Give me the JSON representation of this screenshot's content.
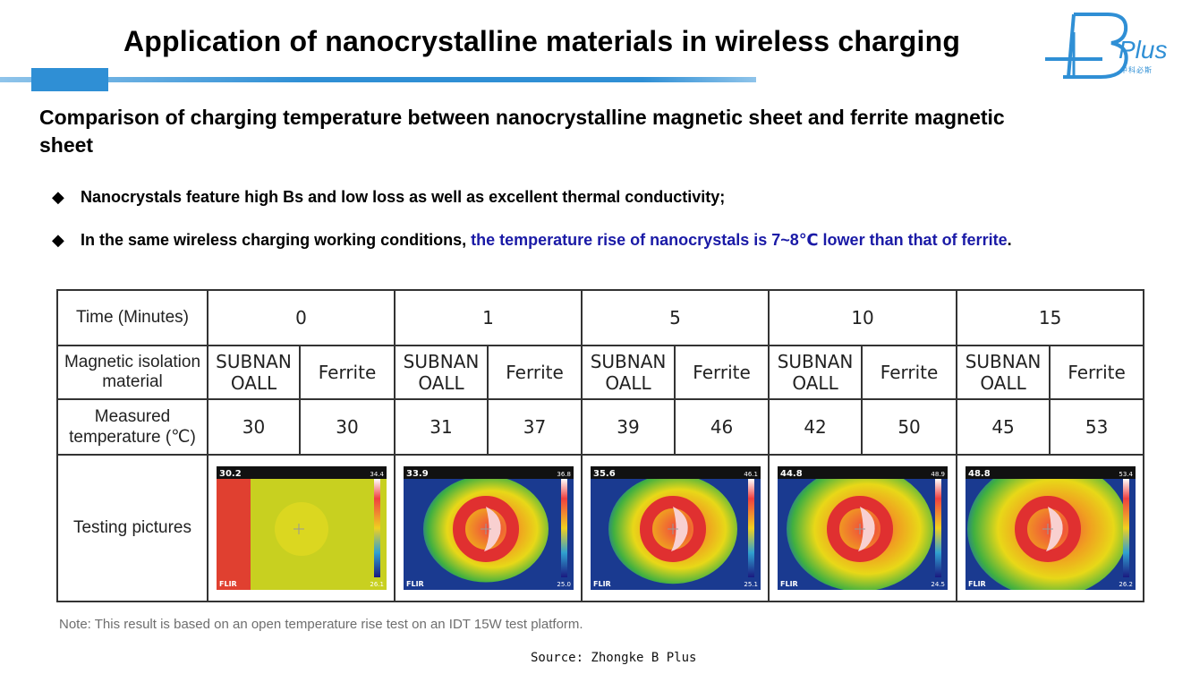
{
  "title": "Application of nanocrystalline materials in wireless charging",
  "logo": {
    "plus": "Plus",
    "sub": "中科必斯"
  },
  "subtitle": "Comparison of charging temperature between nanocrystalline magnetic sheet and ferrite magnetic sheet",
  "bullets": [
    {
      "text": "Nanocrystals feature high Bs and low loss as well as excellent thermal conductivity;"
    },
    {
      "text": "In the same wireless charging working conditions, ",
      "highlight": "the temperature rise of nanocrystals is 7~8℃ lower than that of ferrite",
      "end": "."
    }
  ],
  "table": {
    "row_labels": {
      "time": "Time (Minutes)",
      "material": "Magnetic isolation material",
      "temp": "Measured temperature (℃)",
      "pictures": "Testing pictures"
    },
    "times": [
      "0",
      "1",
      "5",
      "10",
      "15"
    ],
    "materials": [
      "SUBNAN OALL",
      "Ferrite"
    ],
    "temperatures": [
      [
        "30",
        "30"
      ],
      [
        "31",
        "37"
      ],
      [
        "39",
        "46"
      ],
      [
        "42",
        "50"
      ],
      [
        "45",
        "53"
      ]
    ],
    "thermal_images": [
      {
        "reading": "30.2",
        "max": "34.4",
        "min": "26.1"
      },
      {
        "reading": "33.9",
        "max": "36.8",
        "min": "25.0"
      },
      {
        "reading": "35.6",
        "max": "46.1",
        "min": "25.1"
      },
      {
        "reading": "44.8",
        "max": "48.9",
        "min": "24.5"
      },
      {
        "reading": "48.8",
        "max": "53.4",
        "min": "26.2"
      }
    ],
    "flir_label": "FLIR"
  },
  "note": "Note: This result is based on an open temperature rise test on an IDT 15W test platform.",
  "source": "Source: Zhongke B Plus",
  "colors": {
    "accent_blue": "#2f8fd5",
    "highlight_text": "#1a1aa6"
  }
}
